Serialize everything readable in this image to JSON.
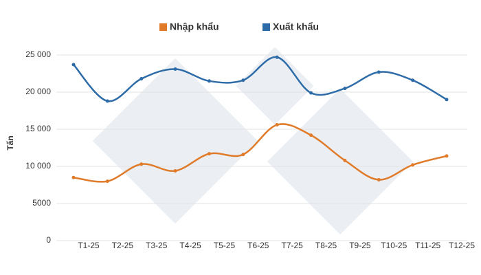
{
  "chart_data": {
    "type": "line",
    "y_label": "Tấn",
    "categories": [
      "T1-25",
      "T2-25",
      "T3-25",
      "T4-25",
      "T5-25",
      "T6-25",
      "T7-25",
      "T8-25",
      "T9-25",
      "T10-25",
      "T11-25",
      "T12-25"
    ],
    "series": [
      {
        "name": "Nhập khẩu",
        "color": "#e07b2a",
        "values": [
          8500,
          8000,
          10300,
          9400,
          11700,
          11600,
          15600,
          14200,
          10800,
          8200,
          10200,
          11400
        ]
      },
      {
        "name": "Xuất khẩu",
        "color": "#2e6ca8",
        "values": [
          23700,
          18800,
          21800,
          23100,
          21500,
          21600,
          24700,
          19900,
          20500,
          22700,
          21600,
          19000
        ]
      }
    ],
    "ylim": [
      0,
      25000
    ],
    "yticks": [
      0,
      5000,
      {
        "value": 10000,
        "label": "10 000"
      },
      {
        "value": 15000,
        "label": "15 000"
      },
      {
        "value": 20000,
        "label": "20 000"
      },
      {
        "value": 25000,
        "label": "25 000"
      }
    ],
    "grid": true,
    "legend": "top"
  }
}
